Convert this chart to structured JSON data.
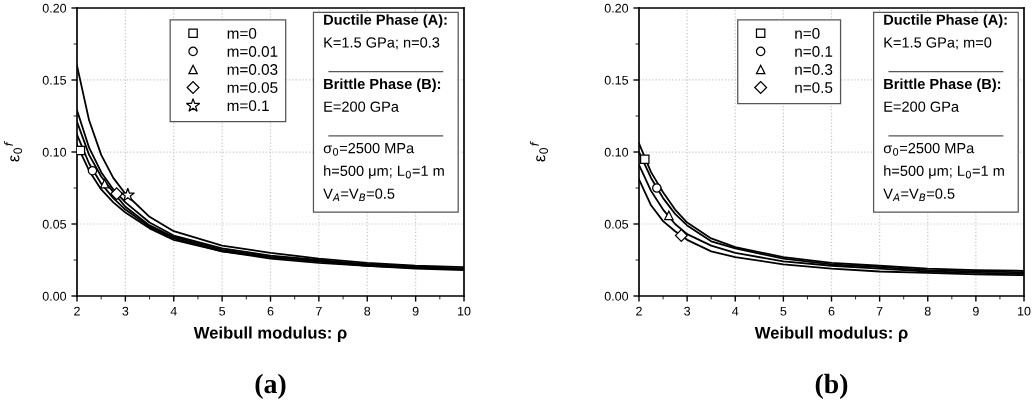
{
  "chart_data": [
    {
      "type": "line",
      "title": "(a)",
      "xlabel": "Weibull modulus: ρ",
      "ylabel": "ε$_{0}$$^{f}$",
      "x": [
        2,
        2.25,
        2.5,
        2.75,
        3,
        3.5,
        4,
        5,
        6,
        7,
        8,
        9,
        10
      ],
      "xlim": [
        2,
        10
      ],
      "xticks": [
        2,
        3,
        4,
        5,
        6,
        7,
        8,
        9,
        10
      ],
      "ylim": [
        0,
        0.2
      ],
      "yticks": [
        {
          "value": 0,
          "label": "0.00"
        },
        {
          "value": 0.05,
          "label": "0.05"
        },
        {
          "value": 0.1,
          "label": "0.10"
        },
        {
          "value": 0.15,
          "label": "0.15"
        },
        {
          "value": 0.2,
          "label": "0.20"
        }
      ],
      "grid": true,
      "legend": "top",
      "marker": "none",
      "line_style": "solid",
      "series": [
        {
          "color": "#000000",
          "values": [
            0.105,
            0.087,
            0.074,
            0.065,
            0.058,
            0.047,
            0.039,
            0.031,
            0.026,
            0.023,
            0.021,
            0.019,
            0.018
          ]
        },
        {
          "color": "#000000",
          "values": [
            0.112,
            0.092,
            0.078,
            0.068,
            0.06,
            0.048,
            0.04,
            0.031,
            0.027,
            0.024,
            0.021,
            0.0195,
            0.0185
          ]
        },
        {
          "color": "#000000",
          "values": [
            0.121,
            0.098,
            0.083,
            0.072,
            0.062,
            0.049,
            0.041,
            0.032,
            0.027,
            0.024,
            0.022,
            0.02,
            0.0188
          ]
        },
        {
          "color": "#000000",
          "values": [
            0.129,
            0.103,
            0.086,
            0.074,
            0.065,
            0.051,
            0.042,
            0.033,
            0.028,
            0.025,
            0.022,
            0.02,
            0.019
          ]
        },
        {
          "color": "#000000",
          "values": [
            0.16,
            0.122,
            0.098,
            0.082,
            0.071,
            0.055,
            0.045,
            0.035,
            0.03,
            0.026,
            0.023,
            0.021,
            0.02
          ]
        },
        {
          "type": "scatter",
          "name": "m=0",
          "marker": "square",
          "color": "#000000",
          "x": [
            2.07
          ],
          "values": [
            0.101
          ]
        },
        {
          "type": "scatter",
          "name": "m=0.01",
          "marker": "circle",
          "color": "#000000",
          "x": [
            2.32
          ],
          "values": [
            0.087
          ]
        },
        {
          "type": "scatter",
          "name": "m=0.03",
          "marker": "triangle",
          "color": "#000000",
          "x": [
            2.57
          ],
          "values": [
            0.078
          ]
        },
        {
          "type": "scatter",
          "name": "m=0.05",
          "marker": "diamond",
          "color": "#000000",
          "x": [
            2.82
          ],
          "values": [
            0.071
          ]
        },
        {
          "type": "scatter",
          "name": "m=0.1",
          "marker": "star",
          "color": "#000000",
          "x": [
            3.05
          ],
          "values": [
            0.07
          ]
        }
      ],
      "annotations": [
        "Ductile Phase (A):",
        "K=1.5 GPa; n=0.3",
        "Brittle Phase (B):",
        "E=200 GPa",
        "σ$_{0}$=2500 MPa",
        "h=500 μm; L$_{0}$=1 m",
        "V$_{A}$=V$_{B}$=0.5"
      ]
    },
    {
      "type": "line",
      "title": "(b)",
      "xlabel": "Weibull modulus: ρ",
      "ylabel": "ε$_{0}$$^{f}$",
      "x": [
        2,
        2.25,
        2.5,
        2.75,
        3,
        3.5,
        4,
        5,
        6,
        7,
        8,
        9,
        10
      ],
      "xlim": [
        2,
        10
      ],
      "xticks": [
        2,
        3,
        4,
        5,
        6,
        7,
        8,
        9,
        10
      ],
      "ylim": [
        0,
        0.2
      ],
      "yticks": [
        {
          "value": 0,
          "label": "0.00"
        },
        {
          "value": 0.05,
          "label": "0.05"
        },
        {
          "value": 0.1,
          "label": "0.10"
        },
        {
          "value": 0.15,
          "label": "0.15"
        },
        {
          "value": 0.2,
          "label": "0.20"
        }
      ],
      "grid": true,
      "legend": "top",
      "marker": "none",
      "line_style": "solid",
      "series": [
        {
          "color": "#000000",
          "values": [
            0.106,
            0.086,
            0.072,
            0.06,
            0.051,
            0.04,
            0.034,
            0.027,
            0.023,
            0.021,
            0.019,
            0.018,
            0.0175
          ]
        },
        {
          "color": "#000000",
          "values": [
            0.1,
            0.082,
            0.068,
            0.057,
            0.049,
            0.038,
            0.033,
            0.026,
            0.022,
            0.02,
            0.018,
            0.017,
            0.0165
          ]
        },
        {
          "color": "#000000",
          "values": [
            0.091,
            0.073,
            0.06,
            0.05,
            0.043,
            0.035,
            0.03,
            0.024,
            0.021,
            0.019,
            0.017,
            0.016,
            0.0155
          ]
        },
        {
          "color": "#000000",
          "values": [
            0.081,
            0.063,
            0.052,
            0.045,
            0.039,
            0.031,
            0.027,
            0.022,
            0.019,
            0.017,
            0.016,
            0.015,
            0.0145
          ]
        },
        {
          "type": "scatter",
          "name": "n=0",
          "marker": "square",
          "color": "#000000",
          "x": [
            2.12
          ],
          "values": [
            0.095
          ]
        },
        {
          "type": "scatter",
          "name": "n=0.1",
          "marker": "circle",
          "color": "#000000",
          "x": [
            2.37
          ],
          "values": [
            0.075
          ]
        },
        {
          "type": "scatter",
          "name": "n=0.3",
          "marker": "triangle",
          "color": "#000000",
          "x": [
            2.62
          ],
          "values": [
            0.056
          ]
        },
        {
          "type": "scatter",
          "name": "n=0.5",
          "marker": "diamond",
          "color": "#000000",
          "x": [
            2.88
          ],
          "values": [
            0.042
          ]
        }
      ],
      "annotations": [
        "Ductile Phase (A):",
        "K=1.5 GPa; m=0",
        "Brittle Phase (B):",
        "E=200 GPa",
        "σ$_{0}$=2500 MPa",
        "h=500 μm; L$_{0}$=1 m",
        "V$_{A}$=V$_{B}$=0.5"
      ]
    }
  ]
}
